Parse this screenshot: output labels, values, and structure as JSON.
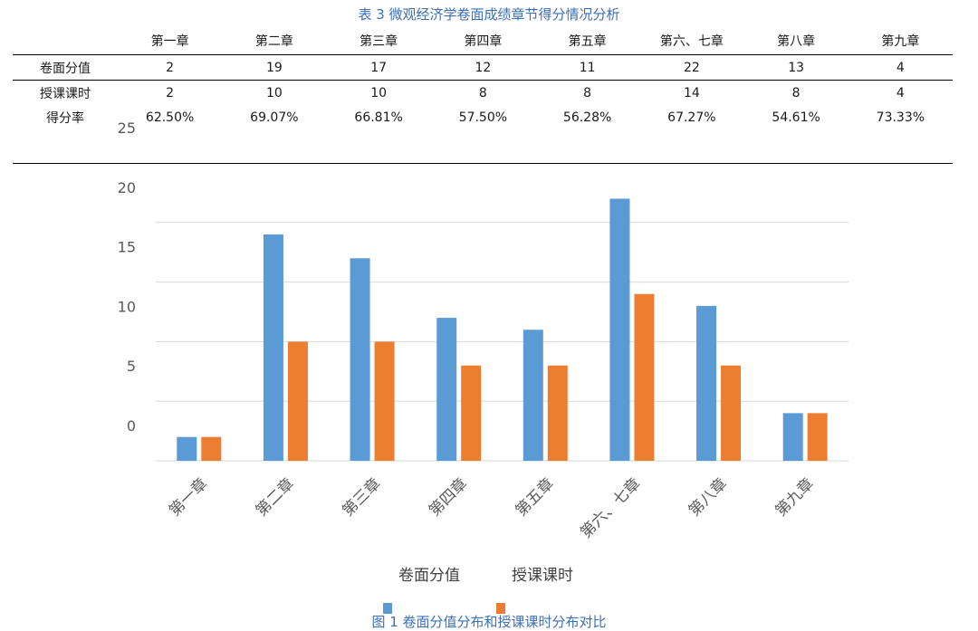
{
  "table_caption": "表 3 微观经济学卷面成绩章节得分情况分析",
  "figure_caption": "图 1 卷面分值分布和授课课时分布对比",
  "table": {
    "columns": [
      "第一章",
      "第二章",
      "第三章",
      "第四章",
      "第五章",
      "第六、七章",
      "第八章",
      "第九章"
    ],
    "rows": [
      {
        "label": "卷面分值",
        "values": [
          "2",
          "19",
          "17",
          "12",
          "11",
          "22",
          "13",
          "4"
        ]
      },
      {
        "label": "授课课时",
        "values": [
          "2",
          "10",
          "10",
          "8",
          "8",
          "14",
          "8",
          "4"
        ]
      },
      {
        "label": "得分率",
        "values": [
          "62.50%",
          "69.07%",
          "66.81%",
          "57.50%",
          "56.28%",
          "67.27%",
          "54.61%",
          "73.33%"
        ]
      }
    ]
  },
  "chart_data": {
    "type": "bar",
    "categories": [
      "第一章",
      "第二章",
      "第三章",
      "第四章",
      "第五章",
      "第六、七章",
      "第八章",
      "第九章"
    ],
    "series": [
      {
        "name": "卷面分值",
        "values": [
          2,
          19,
          17,
          12,
          11,
          22,
          13,
          4
        ],
        "color": "#5b9bd5"
      },
      {
        "name": "授课课时",
        "values": [
          2,
          10,
          10,
          8,
          8,
          14,
          8,
          4
        ],
        "color": "#ed7d31"
      }
    ],
    "y_tick_labels": [
      "0",
      "5",
      "10",
      "15",
      "20",
      "25"
    ],
    "ylim": [
      0,
      25
    ],
    "grid": true,
    "legend_position": "bottom"
  }
}
